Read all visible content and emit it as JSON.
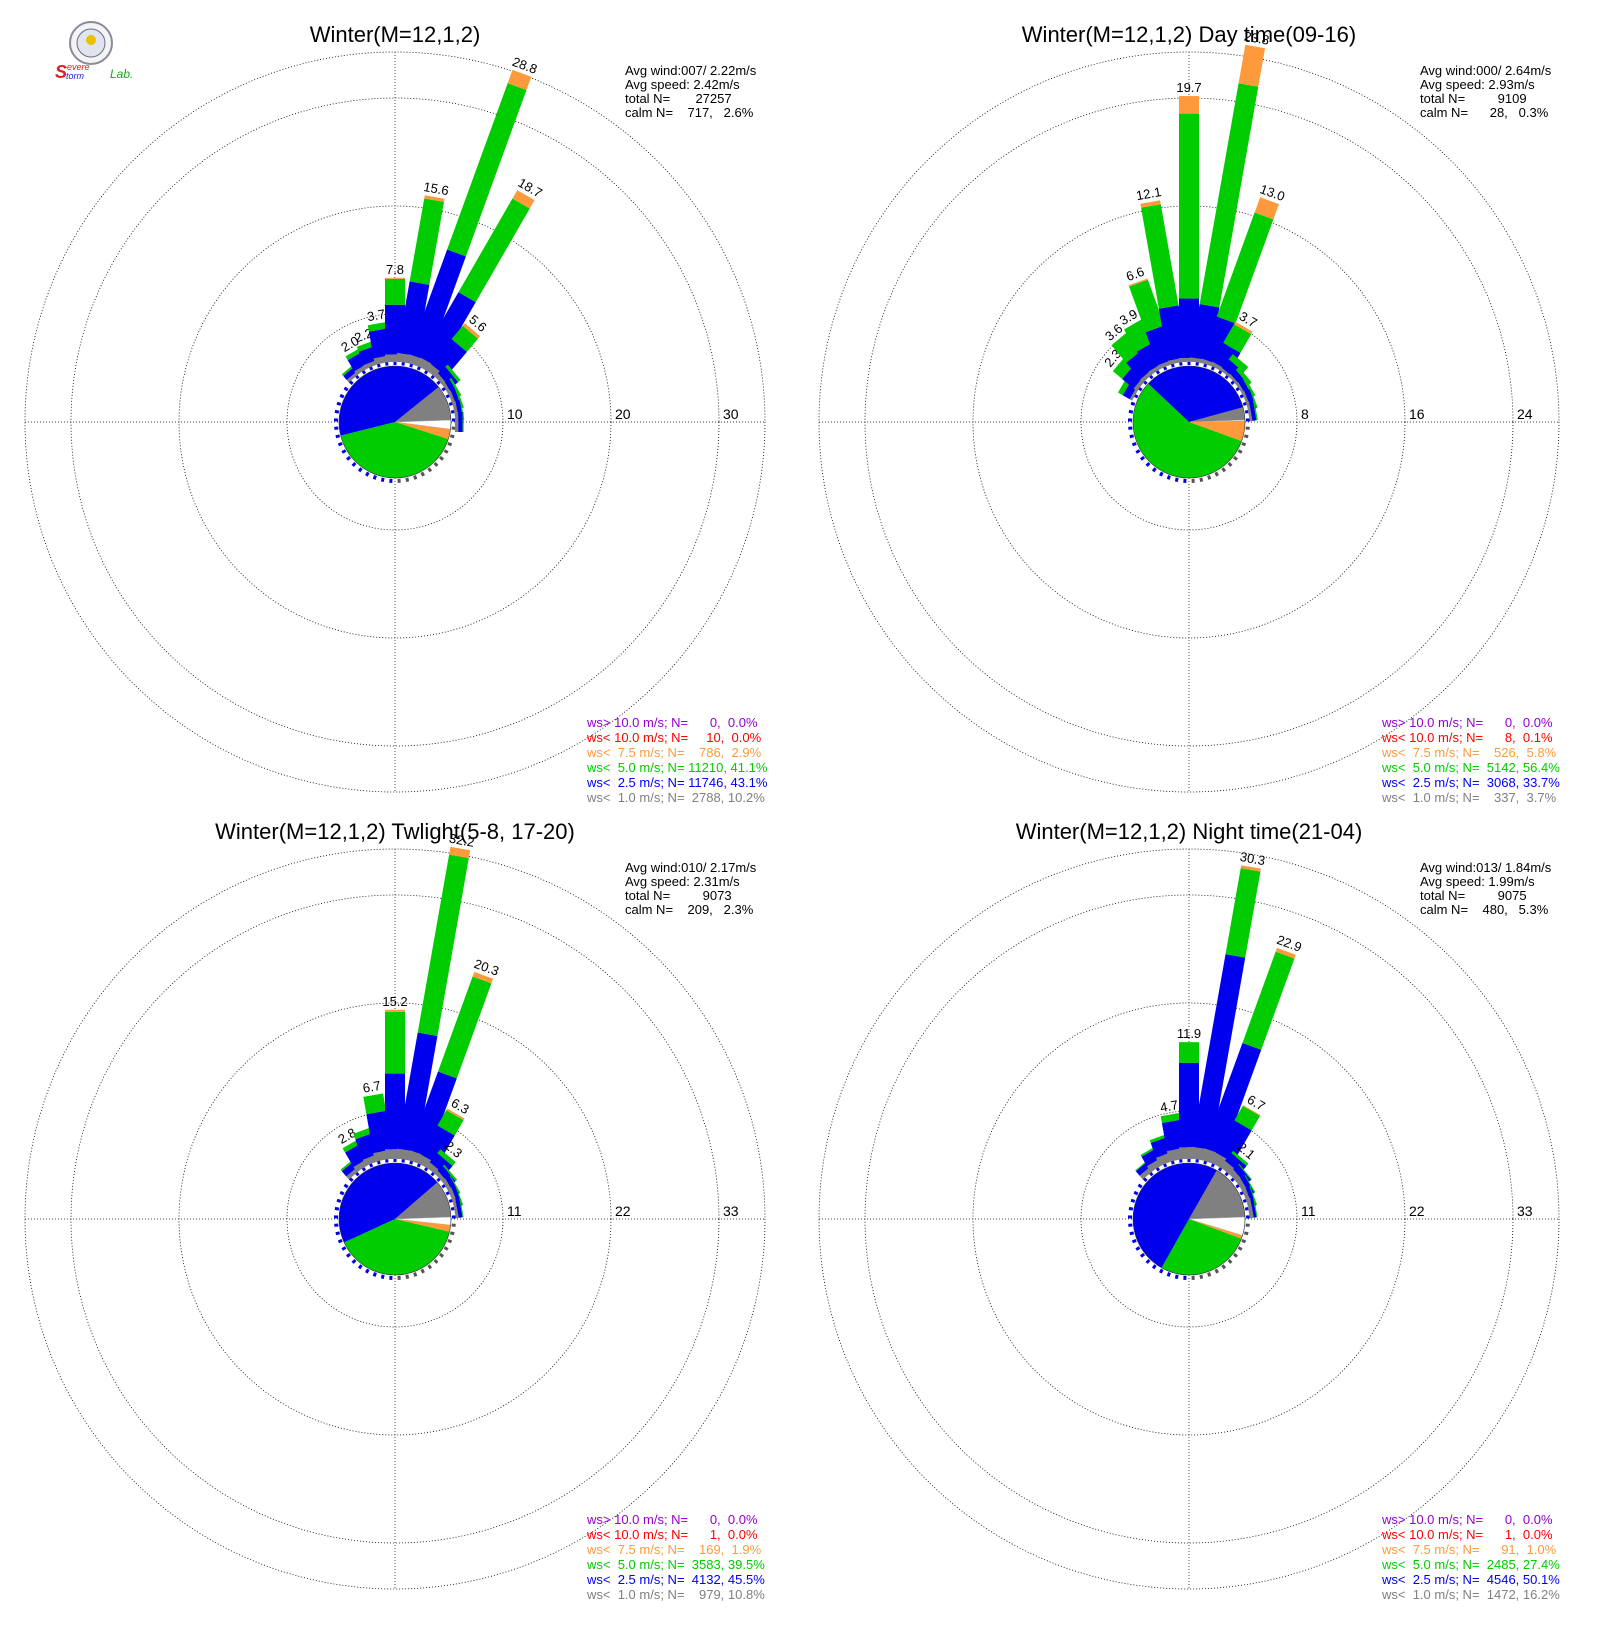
{
  "logo": {
    "text_s": "S",
    "text_evere": "evere",
    "text_torm": "torm",
    "text_lab": "Lab."
  },
  "colors": {
    "gt10": "#9400d3",
    "lt10": "#ff0000",
    "lt7_5": "#ff9a3c",
    "lt5": "#00cc00",
    "lt2_5": "#0000ee",
    "lt1": "#808080",
    "calm": "#ffffff"
  },
  "chart_data": [
    {
      "type": "windrose",
      "title": "Winter(M=12,1,2)",
      "ring_labels": [
        "10",
        "20",
        "30"
      ],
      "max": 30,
      "stats": [
        "Avg wind:007/ 2.22m/s",
        "Avg speed: 2.42m/s",
        "total N=       27257",
        "calm N=    717,   2.6%"
      ],
      "legend": [
        {
          "key": "gt10",
          "text": "ws> 10.0 m/s; N=      0,  0.0%"
        },
        {
          "key": "lt10",
          "text": "ws< 10.0 m/s; N=     10,  0.0%"
        },
        {
          "key": "lt7_5",
          "text": "ws<  7.5 m/s; N=    786,  2.9%"
        },
        {
          "key": "lt5",
          "text": "ws<  5.0 m/s; N= 11210, 41.1%"
        },
        {
          "key": "lt2_5",
          "text": "ws<  2.5 m/s; N= 11746, 43.1%"
        },
        {
          "key": "lt1",
          "text": "ws<  1.0 m/s; N=  2788, 10.2%"
        }
      ],
      "pie": [
        {
          "key": "lt1",
          "pct": 10.2
        },
        {
          "key": "lt7_5",
          "pct": 2.9
        },
        {
          "key": "lt5",
          "pct": 41.1
        },
        {
          "key": "lt2_5",
          "pct": 43.1
        }
      ],
      "bars": [
        {
          "dir": -40,
          "total": 1.0,
          "segs": [
            0.3,
            0.5,
            0.2
          ]
        },
        {
          "dir": -30,
          "total": 2.0,
          "segs": [
            0.4,
            1.2,
            0.4
          ],
          "label": "2.0"
        },
        {
          "dir": -20,
          "total": 2.2,
          "segs": [
            0.4,
            1.3,
            0.5
          ],
          "label": "2.2"
        },
        {
          "dir": -10,
          "total": 3.7,
          "segs": [
            0.6,
            2.5,
            0.6
          ],
          "label": "3.7"
        },
        {
          "dir": 0,
          "total": 7.8,
          "segs": [
            0.7,
            4.6,
            2.4,
            0.1
          ],
          "label": "7.8"
        },
        {
          "dir": 10,
          "total": 15.6,
          "segs": [
            0.8,
            6.7,
            7.8,
            0.3
          ],
          "label": "15.6"
        },
        {
          "dir": 20,
          "total": 28.8,
          "segs": [
            0.8,
            10.3,
            16.4,
            1.3
          ],
          "label": "28.8"
        },
        {
          "dir": 30,
          "total": 18.7,
          "segs": [
            0.8,
            7.0,
            10.0,
            0.9
          ],
          "label": "18.7"
        },
        {
          "dir": 40,
          "total": 5.6,
          "segs": [
            0.7,
            3.0,
            1.6,
            0.3
          ],
          "label": "5.6"
        },
        {
          "dir": 50,
          "total": 1.6,
          "segs": [
            0.4,
            0.9,
            0.3
          ]
        },
        {
          "dir": 60,
          "total": 1.0,
          "segs": [
            0.3,
            0.5,
            0.2
          ]
        },
        {
          "dir": 70,
          "total": 0.9,
          "segs": [
            0.3,
            0.4,
            0.2
          ]
        },
        {
          "dir": 80,
          "total": 0.8,
          "segs": [
            0.3,
            0.4,
            0.1
          ]
        },
        {
          "dir": 90,
          "total": 0.8,
          "segs": [
            0.3,
            0.4,
            0.1
          ]
        }
      ]
    },
    {
      "type": "windrose",
      "title": "Winter(M=12,1,2) Day time(09-16)",
      "ring_labels": [
        "8",
        "16",
        "24"
      ],
      "max": 24,
      "stats": [
        "Avg wind:000/ 2.64m/s",
        "Avg speed: 2.93m/s",
        "total N=         9109",
        "calm N=      28,   0.3%"
      ],
      "legend": [
        {
          "key": "gt10",
          "text": "ws> 10.0 m/s; N=      0,  0.0%"
        },
        {
          "key": "lt10",
          "text": "ws< 10.0 m/s; N=      8,  0.1%"
        },
        {
          "key": "lt7_5",
          "text": "ws<  7.5 m/s; N=    526,  5.8%"
        },
        {
          "key": "lt5",
          "text": "ws<  5.0 m/s; N=  5142, 56.4%"
        },
        {
          "key": "lt2_5",
          "text": "ws<  2.5 m/s; N=  3068, 33.7%"
        },
        {
          "key": "lt1",
          "text": "ws<  1.0 m/s; N=    337,  3.7%"
        }
      ],
      "pie": [
        {
          "key": "lt1",
          "pct": 3.7
        },
        {
          "key": "lt7_5",
          "pct": 5.8
        },
        {
          "key": "lt5",
          "pct": 56.4
        },
        {
          "key": "lt2_5",
          "pct": 33.7
        }
      ],
      "bars": [
        {
          "dir": -60,
          "total": 1.2,
          "segs": [
            0.2,
            0.6,
            0.4
          ]
        },
        {
          "dir": -50,
          "total": 2.3,
          "segs": [
            0.3,
            1.1,
            0.9
          ],
          "label": "2.3"
        },
        {
          "dir": -40,
          "total": 3.6,
          "segs": [
            0.3,
            1.6,
            1.7
          ],
          "label": "3.6"
        },
        {
          "dir": -30,
          "total": 3.9,
          "segs": [
            0.3,
            1.7,
            1.9
          ],
          "label": "3.9"
        },
        {
          "dir": -20,
          "total": 6.6,
          "segs": [
            0.3,
            2.6,
            3.6,
            0.1
          ],
          "label": "6.6"
        },
        {
          "dir": -10,
          "total": 12.1,
          "segs": [
            0.3,
            3.9,
            7.6,
            0.3
          ],
          "label": "12.1"
        },
        {
          "dir": 0,
          "total": 19.7,
          "segs": [
            0.3,
            4.4,
            13.7,
            1.3
          ],
          "label": "19.7"
        },
        {
          "dir": 10,
          "total": 23.8,
          "segs": [
            0.3,
            4.0,
            16.6,
            2.9
          ],
          "label": "23.8"
        },
        {
          "dir": 20,
          "total": 13.0,
          "segs": [
            0.3,
            3.3,
            8.2,
            1.2
          ],
          "label": "13.0"
        },
        {
          "dir": 30,
          "total": 3.7,
          "segs": [
            0.3,
            1.6,
            1.6,
            0.2
          ],
          "label": "3.7"
        },
        {
          "dir": 40,
          "total": 1.5,
          "segs": [
            0.2,
            0.8,
            0.5
          ]
        },
        {
          "dir": 50,
          "total": 1.0,
          "segs": [
            0.2,
            0.5,
            0.3
          ]
        },
        {
          "dir": 60,
          "total": 0.8,
          "segs": [
            0.2,
            0.4,
            0.2
          ]
        },
        {
          "dir": 70,
          "total": 0.7,
          "segs": [
            0.2,
            0.4,
            0.1
          ]
        },
        {
          "dir": 80,
          "total": 0.6,
          "segs": [
            0.2,
            0.3,
            0.1
          ]
        }
      ]
    },
    {
      "type": "windrose",
      "title": "Winter(M=12,1,2) Twlight(5-8, 17-20)",
      "ring_labels": [
        "11",
        "22",
        "33"
      ],
      "max": 33,
      "stats": [
        "Avg wind:010/ 2.17m/s",
        "Avg speed: 2.31m/s",
        "total N=         9073",
        "calm N=    209,   2.3%"
      ],
      "legend": [
        {
          "key": "gt10",
          "text": "ws> 10.0 m/s; N=      0,  0.0%"
        },
        {
          "key": "lt10",
          "text": "ws< 10.0 m/s; N=      1,  0.0%"
        },
        {
          "key": "lt7_5",
          "text": "ws<  7.5 m/s; N=    169,  1.9%"
        },
        {
          "key": "lt5",
          "text": "ws<  5.0 m/s; N=  3583, 39.5%"
        },
        {
          "key": "lt2_5",
          "text": "ws<  2.5 m/s; N=  4132, 45.5%"
        },
        {
          "key": "lt1",
          "text": "ws<  1.0 m/s; N=    979, 10.8%"
        }
      ],
      "pie": [
        {
          "key": "lt1",
          "pct": 10.8
        },
        {
          "key": "lt7_5",
          "pct": 1.9
        },
        {
          "key": "lt5",
          "pct": 39.5
        },
        {
          "key": "lt2_5",
          "pct": 45.5
        }
      ],
      "bars": [
        {
          "dir": -40,
          "total": 1.3,
          "segs": [
            0.4,
            0.7,
            0.2
          ]
        },
        {
          "dir": -30,
          "total": 2.8,
          "segs": [
            0.6,
            1.7,
            0.5
          ],
          "label": "2.8"
        },
        {
          "dir": -20,
          "total": 3.5,
          "segs": [
            0.7,
            2.2,
            0.6
          ]
        },
        {
          "dir": -10,
          "total": 6.7,
          "segs": [
            0.9,
            4.0,
            1.8
          ],
          "label": "6.7"
        },
        {
          "dir": 0,
          "total": 15.2,
          "segs": [
            1.0,
            7.7,
            6.3,
            0.2
          ],
          "label": "15.2"
        },
        {
          "dir": 10,
          "total": 32.2,
          "segs": [
            1.0,
            12.0,
            18.4,
            0.8
          ],
          "label": "32.2"
        },
        {
          "dir": 20,
          "total": 20.3,
          "segs": [
            1.0,
            8.5,
            10.3,
            0.5
          ],
          "label": "20.3"
        },
        {
          "dir": 30,
          "total": 6.3,
          "segs": [
            0.9,
            3.4,
            1.8,
            0.2
          ],
          "label": "6.3"
        },
        {
          "dir": 40,
          "total": 2.3,
          "segs": [
            0.6,
            1.2,
            0.5
          ],
          "label": "2.3"
        },
        {
          "dir": 50,
          "total": 1.3,
          "segs": [
            0.4,
            0.7,
            0.2
          ]
        },
        {
          "dir": 60,
          "total": 1.0,
          "segs": [
            0.4,
            0.5,
            0.1
          ]
        },
        {
          "dir": 70,
          "total": 0.9,
          "segs": [
            0.4,
            0.4,
            0.1
          ]
        },
        {
          "dir": 80,
          "total": 0.8,
          "segs": [
            0.3,
            0.4,
            0.1
          ]
        }
      ]
    },
    {
      "type": "windrose",
      "title": "Winter(M=12,1,2) Night time(21-04)",
      "ring_labels": [
        "11",
        "22",
        "33"
      ],
      "max": 33,
      "stats": [
        "Avg wind:013/ 1.84m/s",
        "Avg speed: 1.99m/s",
        "total N=         9075",
        "calm N=    480,   5.3%"
      ],
      "legend": [
        {
          "key": "gt10",
          "text": "ws> 10.0 m/s; N=      0,  0.0%"
        },
        {
          "key": "lt10",
          "text": "ws< 10.0 m/s; N=      1,  0.0%"
        },
        {
          "key": "lt7_5",
          "text": "ws<  7.5 m/s; N=      91,  1.0%"
        },
        {
          "key": "lt5",
          "text": "ws<  5.0 m/s; N=  2485, 27.4%"
        },
        {
          "key": "lt2_5",
          "text": "ws<  2.5 m/s; N=  4546, 50.1%"
        },
        {
          "key": "lt1",
          "text": "ws<  1.0 m/s; N=  1472, 16.2%"
        }
      ],
      "pie": [
        {
          "key": "lt1",
          "pct": 16.2
        },
        {
          "key": "lt7_5",
          "pct": 1.0
        },
        {
          "key": "lt5",
          "pct": 27.4
        },
        {
          "key": "lt2_5",
          "pct": 50.1
        }
      ],
      "bars": [
        {
          "dir": -40,
          "total": 1.2,
          "segs": [
            0.5,
            0.6,
            0.1
          ]
        },
        {
          "dir": -30,
          "total": 2.0,
          "segs": [
            0.7,
            1.1,
            0.2
          ]
        },
        {
          "dir": -20,
          "total": 2.8,
          "segs": [
            0.9,
            1.6,
            0.3
          ]
        },
        {
          "dir": -10,
          "total": 4.7,
          "segs": [
            1.1,
            2.9,
            0.7
          ],
          "label": "4.7"
        },
        {
          "dir": 0,
          "total": 11.9,
          "segs": [
            1.2,
            8.6,
            2.1
          ],
          "label": "11.9"
        },
        {
          "dir": 10,
          "total": 30.3,
          "segs": [
            1.2,
            19.9,
            8.9,
            0.3
          ],
          "label": "30.3"
        },
        {
          "dir": 20,
          "total": 22.9,
          "segs": [
            1.2,
            11.4,
            9.9,
            0.4
          ],
          "label": "22.9"
        },
        {
          "dir": 30,
          "total": 6.7,
          "segs": [
            1.1,
            3.8,
            1.7,
            0.1
          ],
          "label": "6.7"
        },
        {
          "dir": 40,
          "total": 2.1,
          "segs": [
            0.8,
            1.0,
            0.3
          ],
          "label": "2.1"
        },
        {
          "dir": 50,
          "total": 1.4,
          "segs": [
            0.6,
            0.7,
            0.1
          ]
        },
        {
          "dir": 60,
          "total": 1.1,
          "segs": [
            0.5,
            0.5,
            0.1
          ]
        },
        {
          "dir": 70,
          "total": 0.9,
          "segs": [
            0.4,
            0.4,
            0.1
          ]
        },
        {
          "dir": 80,
          "total": 0.8,
          "segs": [
            0.4,
            0.3,
            0.1
          ]
        }
      ]
    }
  ]
}
